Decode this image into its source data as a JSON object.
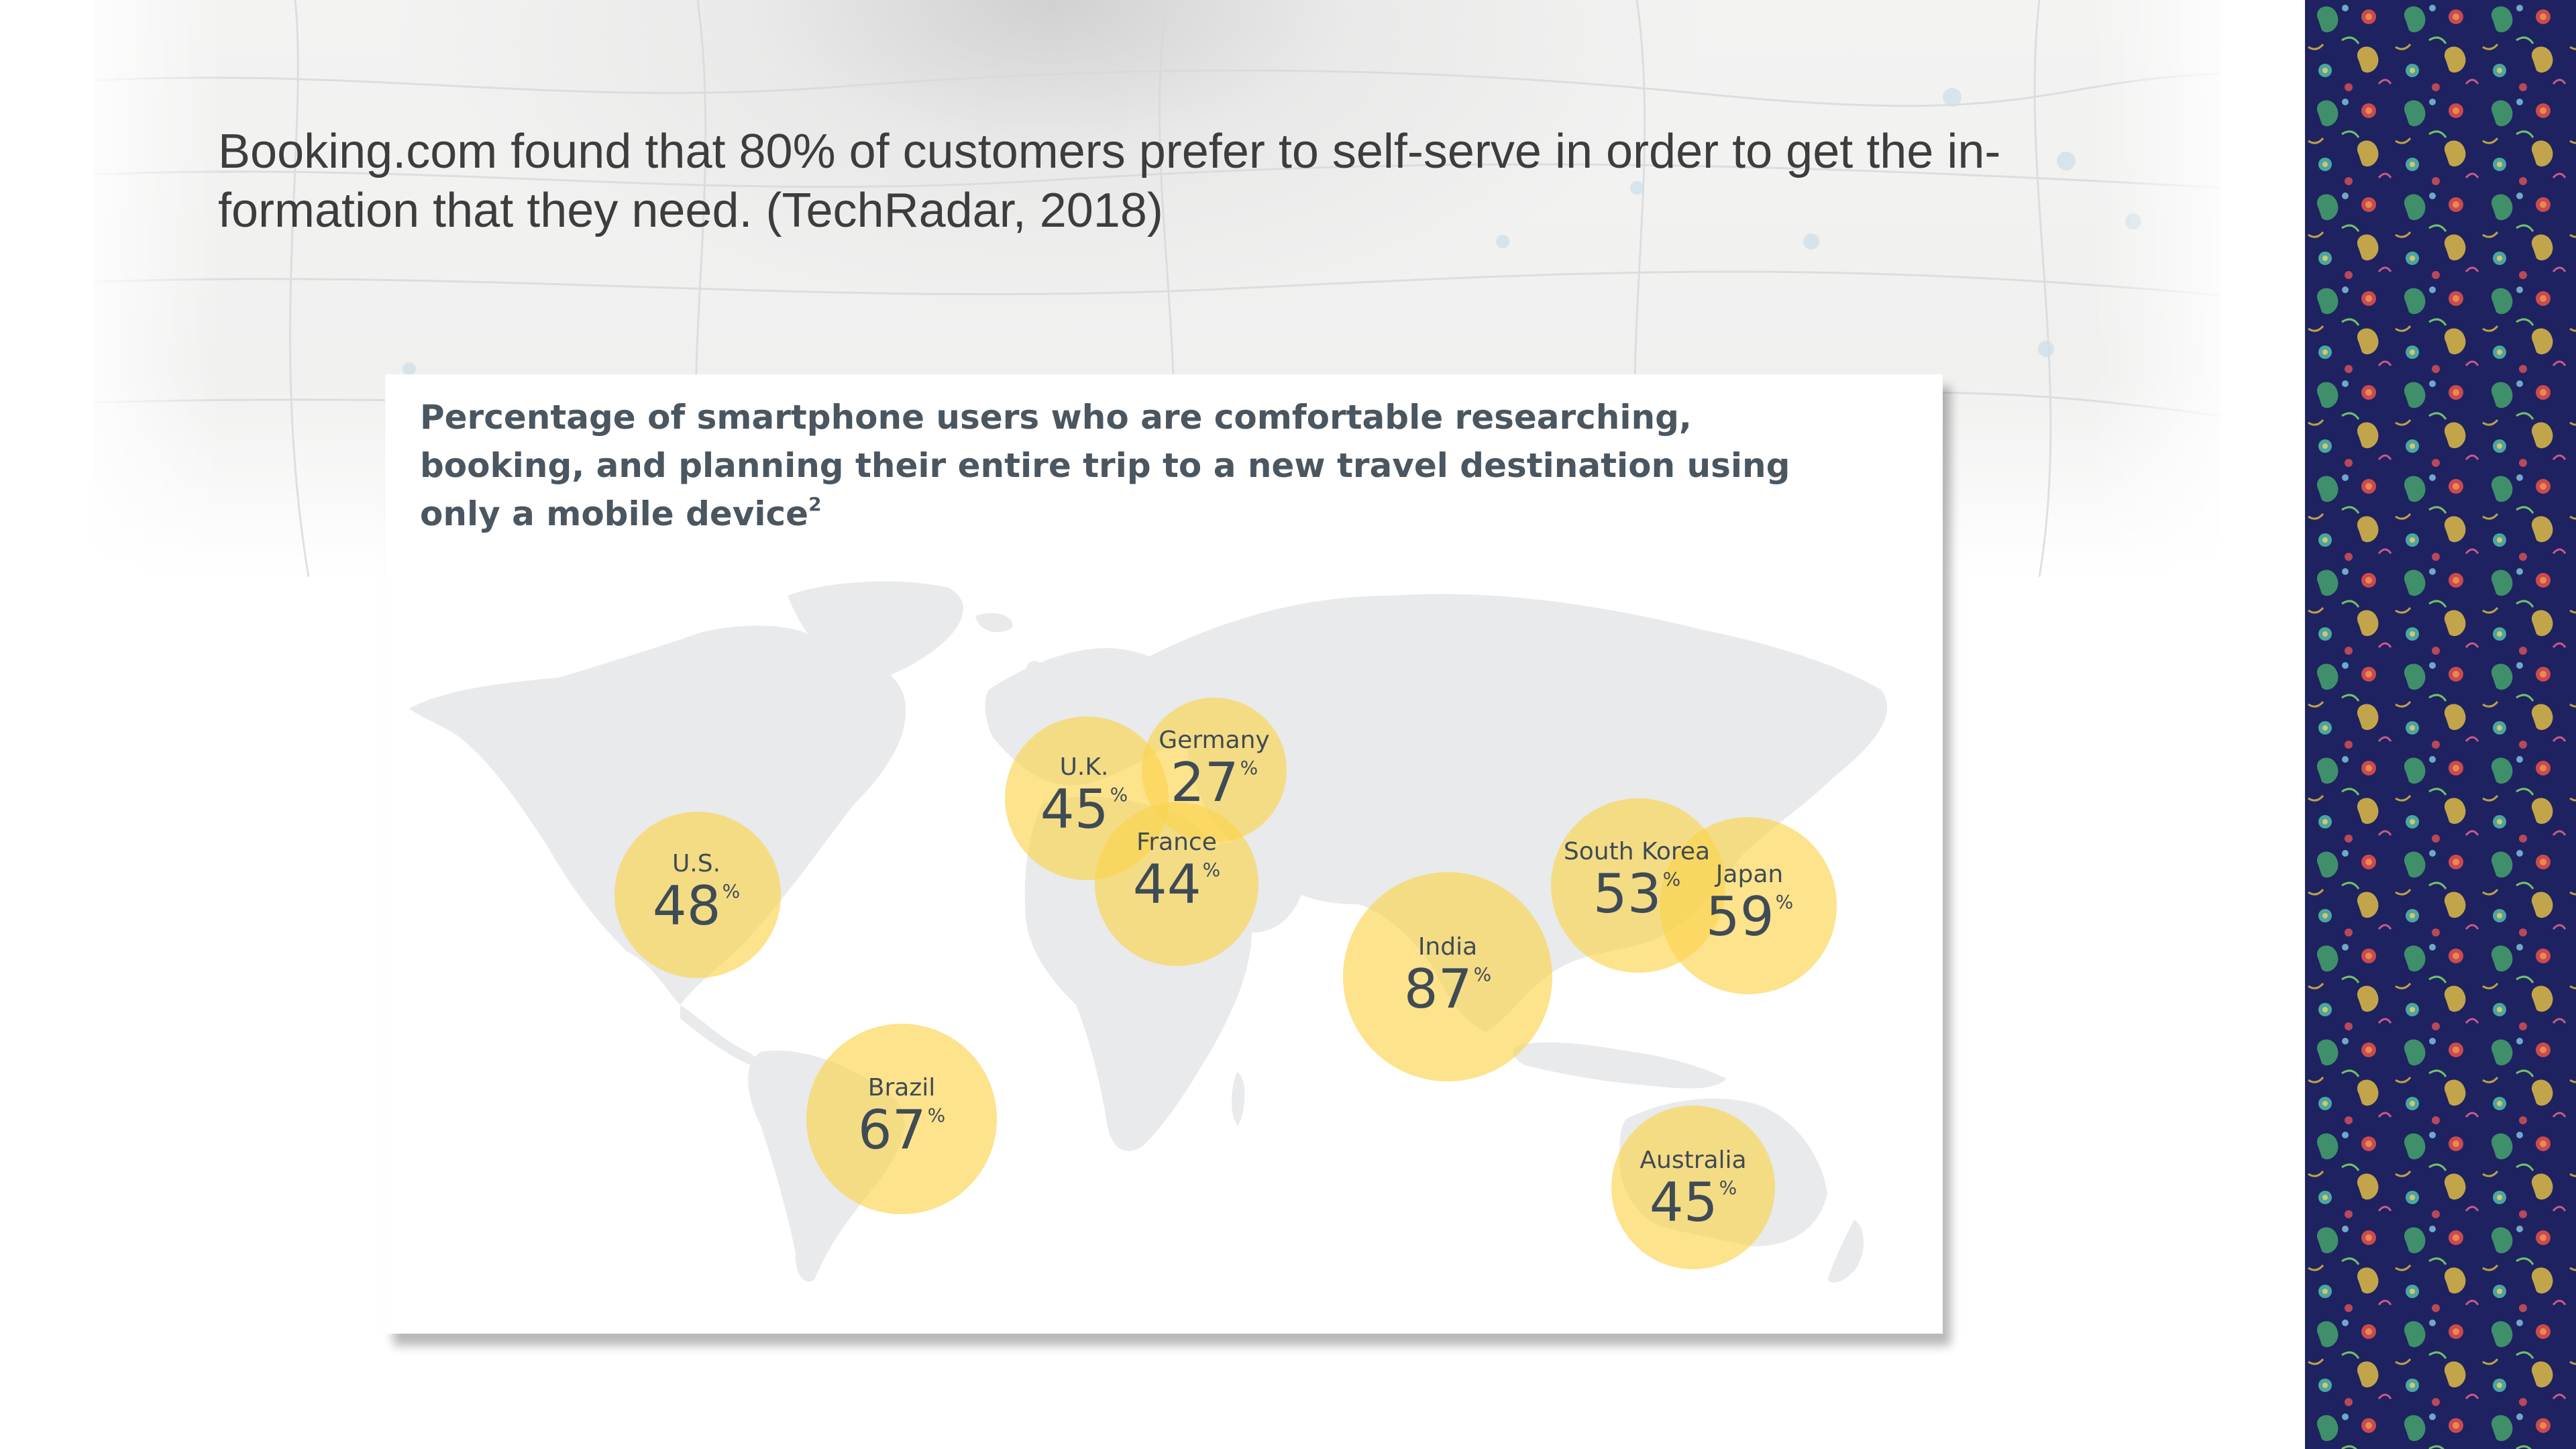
{
  "headline": {
    "line1": "Booking.com found that 80% of customers prefer to self-serve in order to get the in-",
    "line2": "formation that they need. (TechRadar, 2018)"
  },
  "card": {
    "title_line1": "Percentage of smartphone users who are comfortable researching,",
    "title_line2": "booking, and planning their entire trip to a new travel destination using",
    "title_line3": "only a mobile device",
    "title_footnote": "2"
  },
  "colors": {
    "bubble": "#f8cf3f",
    "continent": "#e8eaec",
    "title_text": "#4a5660",
    "pattern_bg": "#1e2260"
  },
  "chart_data": {
    "type": "bubble-map",
    "unit": "%",
    "points": [
      {
        "country": "U.S.",
        "value": 48
      },
      {
        "country": "U.K.",
        "value": 45
      },
      {
        "country": "Germany",
        "value": 27
      },
      {
        "country": "France",
        "value": 44
      },
      {
        "country": "Brazil",
        "value": 67
      },
      {
        "country": "India",
        "value": 87
      },
      {
        "country": "South Korea",
        "value": 53
      },
      {
        "country": "Japan",
        "value": 59
      },
      {
        "country": "Australia",
        "value": 45
      }
    ]
  }
}
